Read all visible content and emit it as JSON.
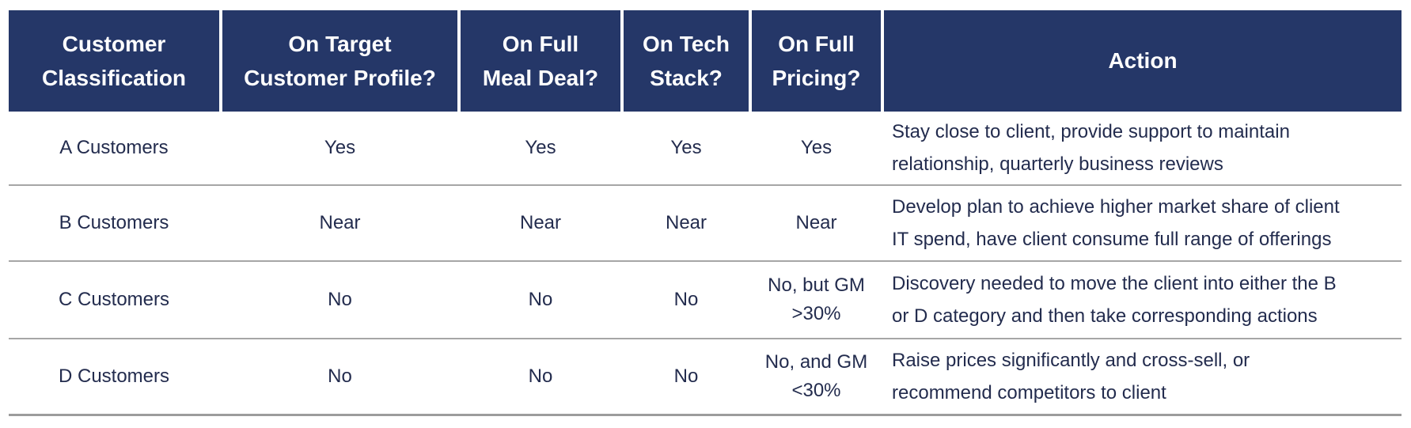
{
  "table": {
    "header": {
      "columns": [
        "Customer\nClassification",
        "On Target\nCustomer Profile?",
        "On Full\nMeal Deal?",
        "On Tech\nStack?",
        "On Full\nPricing?",
        "Action"
      ]
    },
    "rows": [
      {
        "classification": "A Customers",
        "target_profile": "Yes",
        "meal_deal": "Yes",
        "tech_stack": "Yes",
        "pricing": "Yes",
        "action": "Stay close to client, provide support to maintain\nrelationship, quarterly business reviews"
      },
      {
        "classification": "B Customers",
        "target_profile": "Near",
        "meal_deal": "Near",
        "tech_stack": "Near",
        "pricing": "Near",
        "action": "Develop plan to achieve higher market share of client\nIT spend, have client consume full range of offerings"
      },
      {
        "classification": "C Customers",
        "target_profile": "No",
        "meal_deal": "No",
        "tech_stack": "No",
        "pricing": "No, but GM\n>30%",
        "action": "Discovery needed to move the client into either the B\nor D category and then take corresponding actions"
      },
      {
        "classification": "D Customers",
        "target_profile": "No",
        "meal_deal": "No",
        "tech_stack": "No",
        "pricing": "No, and GM\n<30%",
        "action": "Raise prices significantly and cross-sell, or\nrecommend competitors to client"
      }
    ],
    "colors": {
      "header_bg": "#253768",
      "header_text": "#FFFFFF",
      "body_text": "#232C4E",
      "divider": "#A6A6A6"
    }
  }
}
